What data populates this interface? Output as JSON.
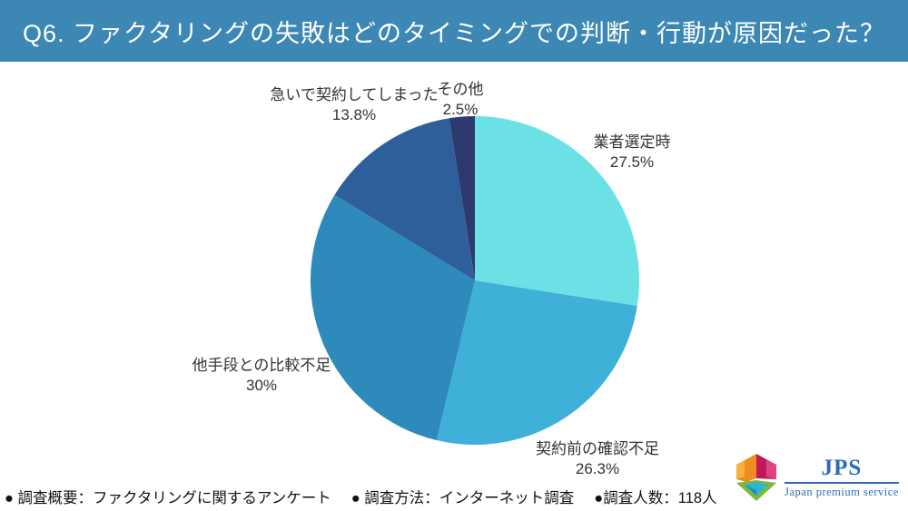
{
  "header": {
    "title": "Q6. ファクタリングの失敗はどのタイミングでの判断・行動が原因だった？"
  },
  "chart_data": {
    "type": "pie",
    "title": "Q6. ファクタリングの失敗はどのタイミングでの判断・行動が原因だった？",
    "start_angle_deg": 0,
    "direction": "clockwise",
    "legend_position": "labels-outside",
    "slices": [
      {
        "label": "業者選定時",
        "value": 27.5,
        "pct_label": "27.5%",
        "color": "#6be1e5"
      },
      {
        "label": "契約前の確認不足",
        "value": 26.3,
        "pct_label": "26.3%",
        "color": "#3fb0d7"
      },
      {
        "label": "他手段との比較不足",
        "value": 30,
        "pct_label": "30%",
        "color": "#2d8abb"
      },
      {
        "label": "急いで契約してしまった",
        "value": 13.8,
        "pct_label": "13.8%",
        "color": "#2e5f9b"
      },
      {
        "label": "その他",
        "value": 2.5,
        "pct_label": "2.5%",
        "color": "#2e3a6e"
      }
    ]
  },
  "footer": {
    "items": [
      "● 調査概要：ファクタリングに関するアンケート",
      "● 調査方法：インターネット調査",
      "●調査人数：118人"
    ]
  },
  "logo": {
    "abbr": "JPS",
    "name": "Japan premium service"
  }
}
